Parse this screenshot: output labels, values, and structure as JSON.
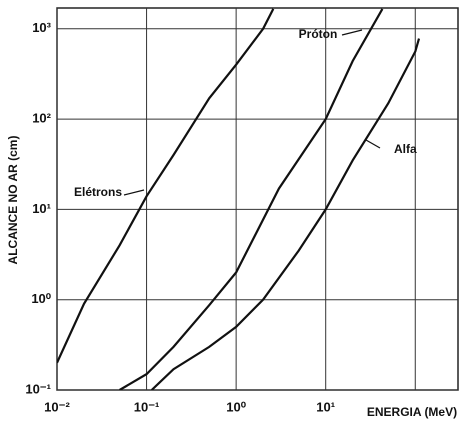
{
  "chart_data": {
    "type": "line",
    "log_x": true,
    "log_y": true,
    "grid": true,
    "x_label": "ENERGIA (MeV)",
    "y_label": "ALCANCE NO AR (cm)",
    "xlim": [
      0.01,
      300
    ],
    "ylim": [
      0.1,
      1700
    ],
    "xticks": [
      {
        "value": 0.01,
        "label": "10⁻²"
      },
      {
        "value": 0.1,
        "label": "10⁻¹"
      },
      {
        "value": 1,
        "label": "10⁰"
      },
      {
        "value": 10,
        "label": "10¹"
      }
    ],
    "xgridlines": [
      100
    ],
    "yticks": [
      {
        "value": 0.1,
        "label": "10⁻¹"
      },
      {
        "value": 1,
        "label": "10⁰"
      },
      {
        "value": 10,
        "label": "10¹"
      },
      {
        "value": 100,
        "label": "10²"
      },
      {
        "value": 1000,
        "label": "10³"
      }
    ],
    "series": [
      {
        "name": "Elétrons",
        "color": "#111111",
        "x": [
          0.01,
          0.02,
          0.05,
          0.1,
          0.2,
          0.5,
          1,
          2,
          2.6
        ],
        "values": [
          0.2,
          0.9,
          4,
          14,
          40,
          170,
          400,
          1000,
          1660
        ]
      },
      {
        "name": "Próton",
        "color": "#111111",
        "x": [
          0.05,
          0.1,
          0.2,
          0.5,
          1,
          3,
          10,
          20,
          43
        ],
        "values": [
          0.1,
          0.15,
          0.3,
          0.87,
          2,
          17,
          100,
          440,
          1660
        ]
      },
      {
        "name": "Alfa",
        "color": "#111111",
        "x": [
          0.114,
          0.2,
          0.5,
          1,
          2,
          5,
          10,
          20,
          50,
          100,
          110
        ],
        "values": [
          0.1,
          0.17,
          0.3,
          0.5,
          1,
          3.5,
          10,
          35,
          150,
          560,
          780
        ]
      }
    ]
  }
}
